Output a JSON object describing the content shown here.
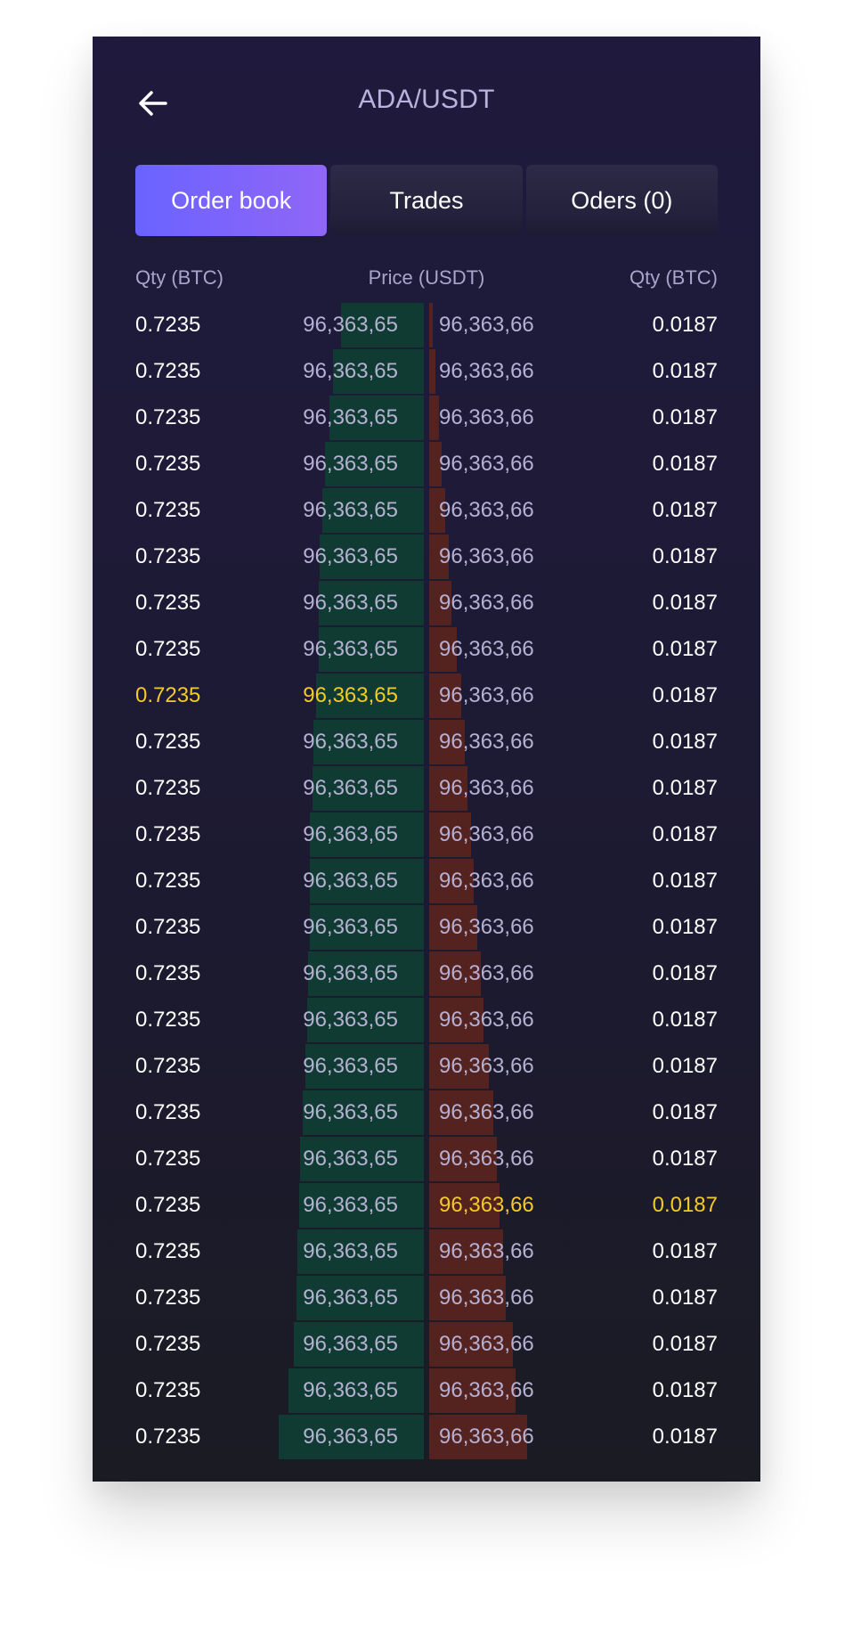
{
  "header": {
    "title": "ADA/USDT",
    "back_icon": "arrow-left-icon"
  },
  "tabs": [
    {
      "label": "Order book",
      "active": true
    },
    {
      "label": "Trades",
      "active": false
    },
    {
      "label": "Oders (0)",
      "active": false
    }
  ],
  "columns": {
    "left": "Qty (BTC)",
    "middle": "Price (USDT)",
    "right": "Qty (BTC)"
  },
  "colors": {
    "accent_start": "#6a63ff",
    "accent_end": "#9066f7",
    "bid_bar": "#0f3b33",
    "ask_bar": "#54231f",
    "highlight": "#f5c928"
  },
  "order_book": {
    "rows": [
      {
        "bid_qty": "0.7235",
        "bid_price": "96,363,65",
        "ask_price": "96,363,66",
        "ask_qty": "0.0187",
        "bid_depth": 0.62,
        "ask_depth": 0.02
      },
      {
        "bid_qty": "0.7235",
        "bid_price": "96,363,65",
        "ask_price": "96,363,66",
        "ask_qty": "0.0187",
        "bid_depth": 0.68,
        "ask_depth": 0.04
      },
      {
        "bid_qty": "0.7235",
        "bid_price": "96,363,65",
        "ask_price": "96,363,66",
        "ask_qty": "0.0187",
        "bid_depth": 0.71,
        "ask_depth": 0.06
      },
      {
        "bid_qty": "0.7235",
        "bid_price": "96,363,65",
        "ask_price": "96,363,66",
        "ask_qty": "0.0187",
        "bid_depth": 0.74,
        "ask_depth": 0.08
      },
      {
        "bid_qty": "0.7235",
        "bid_price": "96,363,65",
        "ask_price": "96,363,66",
        "ask_qty": "0.0187",
        "bid_depth": 0.76,
        "ask_depth": 0.1
      },
      {
        "bid_qty": "0.7235",
        "bid_price": "96,363,65",
        "ask_price": "96,363,66",
        "ask_qty": "0.0187",
        "bid_depth": 0.78,
        "ask_depth": 0.12
      },
      {
        "bid_qty": "0.7235",
        "bid_price": "96,363,65",
        "ask_price": "96,363,66",
        "ask_qty": "0.0187",
        "bid_depth": 0.79,
        "ask_depth": 0.14
      },
      {
        "bid_qty": "0.7235",
        "bid_price": "96,363,65",
        "ask_price": "96,363,66",
        "ask_qty": "0.0187",
        "bid_depth": 0.79,
        "ask_depth": 0.17
      },
      {
        "bid_qty": "0.7235",
        "bid_price": "96,363,65",
        "ask_price": "96,363,66",
        "ask_qty": "0.0187",
        "bid_depth": 0.81,
        "ask_depth": 0.2,
        "bid_highlight": true
      },
      {
        "bid_qty": "0.7235",
        "bid_price": "96,363,65",
        "ask_price": "96,363,66",
        "ask_qty": "0.0187",
        "bid_depth": 0.83,
        "ask_depth": 0.22
      },
      {
        "bid_qty": "0.7235",
        "bid_price": "96,363,65",
        "ask_price": "96,363,66",
        "ask_qty": "0.0187",
        "bid_depth": 0.84,
        "ask_depth": 0.24
      },
      {
        "bid_qty": "0.7235",
        "bid_price": "96,363,65",
        "ask_price": "96,363,66",
        "ask_qty": "0.0187",
        "bid_depth": 0.86,
        "ask_depth": 0.26
      },
      {
        "bid_qty": "0.7235",
        "bid_price": "96,363,65",
        "ask_price": "96,363,66",
        "ask_qty": "0.0187",
        "bid_depth": 0.86,
        "ask_depth": 0.28
      },
      {
        "bid_qty": "0.7235",
        "bid_price": "96,363,65",
        "ask_price": "96,363,66",
        "ask_qty": "0.0187",
        "bid_depth": 0.86,
        "ask_depth": 0.3
      },
      {
        "bid_qty": "0.7235",
        "bid_price": "96,363,65",
        "ask_price": "96,363,66",
        "ask_qty": "0.0187",
        "bid_depth": 0.87,
        "ask_depth": 0.32
      },
      {
        "bid_qty": "0.7235",
        "bid_price": "96,363,65",
        "ask_price": "96,363,66",
        "ask_qty": "0.0187",
        "bid_depth": 0.88,
        "ask_depth": 0.34
      },
      {
        "bid_qty": "0.7235",
        "bid_price": "96,363,65",
        "ask_price": "96,363,66",
        "ask_qty": "0.0187",
        "bid_depth": 0.89,
        "ask_depth": 0.37
      },
      {
        "bid_qty": "0.7235",
        "bid_price": "96,363,65",
        "ask_price": "96,363,66",
        "ask_qty": "0.0187",
        "bid_depth": 0.91,
        "ask_depth": 0.4
      },
      {
        "bid_qty": "0.7235",
        "bid_price": "96,363,65",
        "ask_price": "96,363,66",
        "ask_qty": "0.0187",
        "bid_depth": 0.93,
        "ask_depth": 0.42
      },
      {
        "bid_qty": "0.7235",
        "bid_price": "96,363,65",
        "ask_price": "96,363,66",
        "ask_qty": "0.0187",
        "bid_depth": 0.94,
        "ask_depth": 0.44,
        "ask_highlight": true
      },
      {
        "bid_qty": "0.7235",
        "bid_price": "96,363,65",
        "ask_price": "96,363,66",
        "ask_qty": "0.0187",
        "bid_depth": 0.95,
        "ask_depth": 0.46
      },
      {
        "bid_qty": "0.7235",
        "bid_price": "96,363,65",
        "ask_price": "96,363,66",
        "ask_qty": "0.0187",
        "bid_depth": 0.96,
        "ask_depth": 0.48
      },
      {
        "bid_qty": "0.7235",
        "bid_price": "96,363,65",
        "ask_price": "96,363,66",
        "ask_qty": "0.0187",
        "bid_depth": 0.98,
        "ask_depth": 0.52
      },
      {
        "bid_qty": "0.7235",
        "bid_price": "96,363,65",
        "ask_price": "96,363,66",
        "ask_qty": "0.0187",
        "bid_depth": 1.02,
        "ask_depth": 0.54
      },
      {
        "bid_qty": "0.7235",
        "bid_price": "96,363,65",
        "ask_price": "96,363,66",
        "ask_qty": "0.0187",
        "bid_depth": 1.09,
        "ask_depth": 0.61
      }
    ]
  }
}
